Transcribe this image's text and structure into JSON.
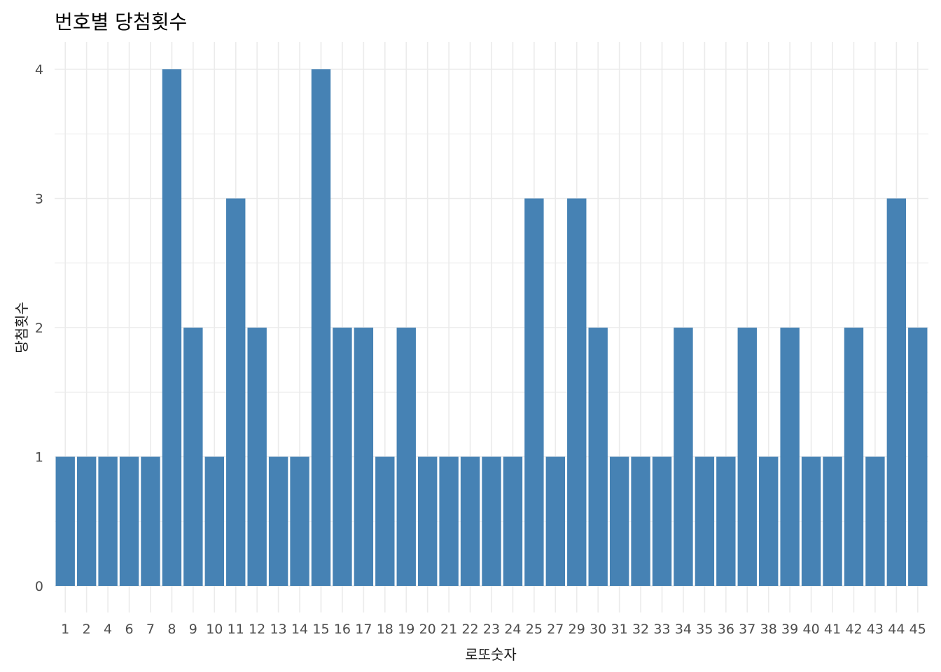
{
  "chart_data": {
    "type": "bar",
    "title": "번호별 당첨횟수",
    "xlabel": "로또숫자",
    "ylabel": "당첨횟수",
    "categories": [
      "1",
      "2",
      "4",
      "6",
      "7",
      "8",
      "9",
      "10",
      "11",
      "12",
      "13",
      "14",
      "15",
      "16",
      "17",
      "18",
      "19",
      "20",
      "21",
      "22",
      "23",
      "24",
      "25",
      "27",
      "29",
      "30",
      "31",
      "32",
      "33",
      "34",
      "35",
      "36",
      "37",
      "38",
      "39",
      "40",
      "41",
      "42",
      "43",
      "44",
      "45"
    ],
    "values": [
      1,
      1,
      1,
      1,
      1,
      4,
      2,
      1,
      3,
      2,
      1,
      1,
      4,
      2,
      2,
      1,
      2,
      1,
      1,
      1,
      1,
      1,
      3,
      1,
      3,
      2,
      1,
      1,
      1,
      2,
      1,
      1,
      2,
      1,
      2,
      1,
      1,
      2,
      1,
      3,
      2
    ],
    "ylim": [
      0,
      4.2
    ],
    "yticks": [
      0,
      1,
      2,
      3,
      4
    ],
    "grid": true,
    "bar_color": "#4682b4",
    "grid_color": "#ebebeb"
  }
}
